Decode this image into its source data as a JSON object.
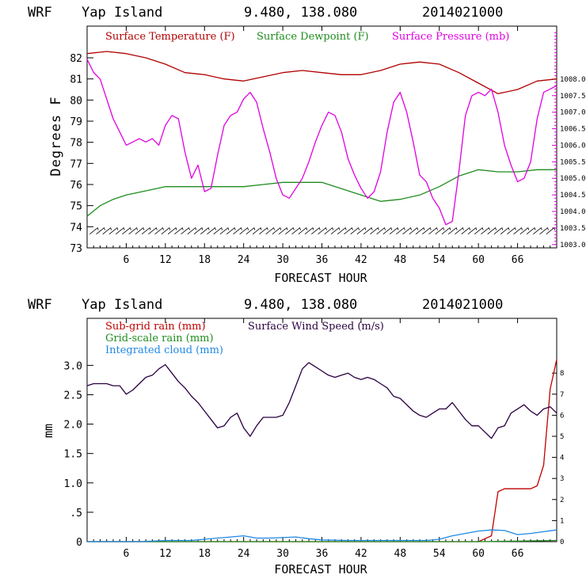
{
  "colors": {
    "temperature": "#b00000",
    "dewpoint": "#1e8c1e",
    "pressure": "#e000e0",
    "wind": "#2a0040",
    "subgrid": "#c00000",
    "gridscale": "#1e8c1e",
    "cloud": "#1e88e5",
    "barb": "#000000"
  },
  "chart_data": [
    {
      "type": "line",
      "header": {
        "model": "WRF",
        "location": "Yap Island",
        "coords": "9.480, 138.080",
        "run": "2014021000"
      },
      "xlabel": "FORECAST HOUR",
      "ylabel": "Degrees F",
      "xlim": [
        0,
        72
      ],
      "xticks": [
        "6",
        "12",
        "18",
        "24",
        "30",
        "36",
        "42",
        "48",
        "54",
        "60",
        "66"
      ],
      "ylim": [
        73,
        83.5
      ],
      "yticks": [
        "73",
        "74",
        "75",
        "76",
        "77",
        "78",
        "79",
        "80",
        "81",
        "82"
      ],
      "y2lim": [
        1002.9,
        1009.6
      ],
      "y2ticks": [
        "1003.0",
        "1003.5",
        "1004.0",
        "1004.5",
        "1005.0",
        "1005.5",
        "1006.0",
        "1006.5",
        "1007.0",
        "1007.5",
        "1008.0"
      ],
      "legend": [
        "Surface Temperature (F)",
        "Surface Dewpoint (F)",
        "Surface Pressure (mb)"
      ],
      "series": [
        {
          "name": "Surface Temperature (F)",
          "axis": "left",
          "x": [
            0,
            3,
            6,
            9,
            12,
            15,
            18,
            21,
            24,
            27,
            30,
            33,
            36,
            39,
            42,
            45,
            48,
            51,
            54,
            57,
            60,
            63,
            66,
            69,
            72
          ],
          "values": [
            82.2,
            82.3,
            82.2,
            82.0,
            81.7,
            81.3,
            81.2,
            81.0,
            80.9,
            81.1,
            81.3,
            81.4,
            81.3,
            81.2,
            81.2,
            81.4,
            81.7,
            81.8,
            81.7,
            81.3,
            80.8,
            80.3,
            80.5,
            80.9,
            81.0
          ]
        },
        {
          "name": "Surface Dewpoint (F)",
          "axis": "left",
          "x": [
            0,
            2,
            4,
            6,
            9,
            12,
            15,
            18,
            21,
            24,
            27,
            30,
            33,
            36,
            39,
            42,
            45,
            48,
            51,
            54,
            57,
            60,
            63,
            66,
            69,
            72
          ],
          "values": [
            74.5,
            75.0,
            75.3,
            75.5,
            75.7,
            75.9,
            75.9,
            75.9,
            75.9,
            75.9,
            76.0,
            76.1,
            76.1,
            76.1,
            75.8,
            75.5,
            75.2,
            75.3,
            75.5,
            75.9,
            76.4,
            76.7,
            76.6,
            76.6,
            76.7,
            76.7
          ]
        },
        {
          "name": "Surface Pressure (mb)",
          "axis": "right",
          "x": [
            0,
            1,
            2,
            3,
            4,
            5,
            6,
            7,
            8,
            9,
            10,
            11,
            12,
            13,
            14,
            15,
            16,
            17,
            18,
            19,
            20,
            21,
            22,
            23,
            24,
            25,
            26,
            27,
            28,
            29,
            30,
            31,
            32,
            33,
            34,
            35,
            36,
            37,
            38,
            39,
            40,
            41,
            42,
            43,
            44,
            45,
            46,
            47,
            48,
            49,
            50,
            51,
            52,
            53,
            54,
            55,
            56,
            57,
            58,
            59,
            60,
            61,
            62,
            63,
            64,
            65,
            66,
            67,
            68,
            69,
            70,
            71,
            72
          ],
          "values": [
            1008.6,
            1008.2,
            1008.0,
            1007.4,
            1006.8,
            1006.4,
            1006.0,
            1006.1,
            1006.2,
            1006.1,
            1006.2,
            1006.0,
            1006.6,
            1006.9,
            1006.8,
            1005.8,
            1005.0,
            1005.4,
            1004.6,
            1004.7,
            1005.7,
            1006.6,
            1006.9,
            1007.0,
            1007.4,
            1007.6,
            1007.3,
            1006.5,
            1005.8,
            1005.0,
            1004.5,
            1004.4,
            1004.7,
            1005.0,
            1005.5,
            1006.1,
            1006.6,
            1007.0,
            1006.9,
            1006.4,
            1005.6,
            1005.1,
            1004.7,
            1004.4,
            1004.6,
            1005.2,
            1006.4,
            1007.3,
            1007.6,
            1007.0,
            1006.1,
            1005.1,
            1004.9,
            1004.4,
            1004.1,
            1003.6,
            1003.7,
            1005.2,
            1006.9,
            1007.5,
            1007.6,
            1007.5,
            1007.7,
            1007.0,
            1006.0,
            1005.4,
            1004.9,
            1005.0,
            1005.5,
            1006.8,
            1007.6,
            1007.7,
            1007.8
          ]
        },
        {
          "name": "Wind barbs",
          "axis": "left",
          "y": 73.8,
          "x": [
            1,
            2,
            3,
            4,
            5,
            6,
            7,
            8,
            9,
            10,
            11,
            12,
            13,
            14,
            15,
            16,
            17,
            18,
            19,
            20,
            21,
            22,
            23,
            24,
            25,
            26,
            27,
            28,
            29,
            30,
            31,
            32,
            33,
            34,
            35,
            36,
            37,
            38,
            39,
            40,
            41,
            42,
            43,
            44,
            45,
            46,
            47,
            48,
            49,
            50,
            51,
            52,
            53,
            54,
            55,
            56,
            57,
            58,
            59,
            60,
            61,
            62,
            63,
            64,
            65,
            66,
            67,
            68,
            69,
            70,
            71
          ]
        }
      ]
    },
    {
      "type": "line",
      "header": {
        "model": "WRF",
        "location": "Yap Island",
        "coords": "9.480, 138.080",
        "run": "2014021000"
      },
      "xlabel": "FORECAST HOUR",
      "ylabel": "mm",
      "xlim": [
        0,
        72
      ],
      "xticks": [
        "6",
        "12",
        "18",
        "24",
        "30",
        "36",
        "42",
        "48",
        "54",
        "60",
        "66"
      ],
      "ylim": [
        0,
        3.8
      ],
      "yticks": [
        "0",
        ".5",
        "1.0",
        "1.5",
        "2.0",
        "2.5",
        "3.0"
      ],
      "y2lim": [
        0,
        10.6
      ],
      "y2ticks": [
        "0",
        "1",
        "2",
        "3",
        "4",
        "5",
        "6",
        "7",
        "8"
      ],
      "legend": [
        "Sub-grid rain (mm)",
        "Surface Wind Speed (m/s)",
        "Grid-scale rain (mm)",
        "Integrated cloud (mm)"
      ],
      "series": [
        {
          "name": "Sub-grid rain (mm)",
          "axis": "left",
          "x": [
            0,
            58,
            60,
            61,
            62,
            63,
            64,
            65,
            66,
            67,
            68,
            69,
            70,
            71,
            72
          ],
          "values": [
            0,
            0,
            0,
            0.05,
            0.1,
            0.85,
            0.9,
            0.9,
            0.9,
            0.9,
            0.9,
            0.95,
            1.3,
            2.6,
            3.1
          ]
        },
        {
          "name": "Grid-scale rain (mm)",
          "axis": "left",
          "x": [
            0,
            60,
            66,
            72
          ],
          "values": [
            0,
            0,
            0.01,
            0.02
          ]
        },
        {
          "name": "Integrated cloud (mm)",
          "axis": "left",
          "x": [
            0,
            8,
            10,
            12,
            16,
            20,
            22,
            24,
            26,
            28,
            32,
            34,
            36,
            40,
            44,
            48,
            52,
            54,
            56,
            58,
            60,
            62,
            64,
            66,
            68,
            70,
            72
          ],
          "values": [
            0,
            0,
            0.01,
            0.02,
            0.02,
            0.06,
            0.08,
            0.1,
            0.06,
            0.06,
            0.08,
            0.05,
            0.03,
            0.02,
            0.02,
            0.02,
            0.02,
            0.04,
            0.1,
            0.14,
            0.18,
            0.2,
            0.19,
            0.12,
            0.14,
            0.17,
            0.2
          ]
        },
        {
          "name": "Surface Wind Speed (m/s)",
          "axis": "right",
          "x": [
            0,
            1,
            2,
            3,
            4,
            5,
            6,
            7,
            8,
            9,
            10,
            11,
            12,
            13,
            14,
            15,
            16,
            17,
            18,
            19,
            20,
            21,
            22,
            23,
            24,
            25,
            26,
            27,
            28,
            29,
            30,
            31,
            32,
            33,
            34,
            35,
            36,
            37,
            38,
            39,
            40,
            41,
            42,
            43,
            44,
            45,
            46,
            47,
            48,
            49,
            50,
            51,
            52,
            53,
            54,
            55,
            56,
            57,
            58,
            59,
            60,
            61,
            62,
            63,
            64,
            65,
            66,
            67,
            68,
            69,
            70,
            71,
            72
          ],
          "values": [
            7.4,
            7.5,
            7.5,
            7.5,
            7.4,
            7.4,
            7.0,
            7.2,
            7.5,
            7.8,
            7.9,
            8.2,
            8.4,
            8.0,
            7.6,
            7.3,
            6.9,
            6.6,
            6.2,
            5.8,
            5.4,
            5.5,
            5.9,
            6.1,
            5.4,
            5.0,
            5.5,
            5.9,
            5.9,
            5.9,
            6.0,
            6.6,
            7.4,
            8.2,
            8.5,
            8.3,
            8.1,
            7.9,
            7.8,
            7.9,
            8.0,
            7.8,
            7.7,
            7.8,
            7.7,
            7.5,
            7.3,
            6.9,
            6.8,
            6.5,
            6.2,
            6.0,
            5.9,
            6.1,
            6.3,
            6.3,
            6.6,
            6.2,
            5.8,
            5.5,
            5.5,
            5.2,
            4.9,
            5.4,
            5.5,
            6.1,
            6.3,
            6.5,
            6.2,
            6.0,
            6.3,
            6.4,
            6.1
          ]
        }
      ]
    }
  ]
}
